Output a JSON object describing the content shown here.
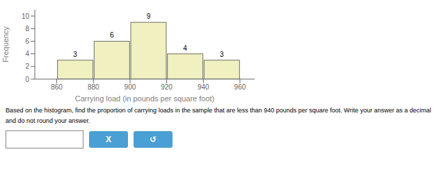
{
  "chart_data": {
    "type": "histogram",
    "bins": [
      860,
      880,
      900,
      920,
      940,
      960
    ],
    "values": [
      3,
      6,
      9,
      4,
      3
    ],
    "color": "#f0f0c0",
    "data_labels": true,
    "xlabel": "Carrying load (in pounds per square foot)",
    "ylabel": "Frequency",
    "xlim": [
      848,
      968
    ],
    "ylim": [
      0,
      11
    ],
    "xticks": [
      860,
      880,
      900,
      920,
      940,
      960
    ],
    "yticks": [
      0,
      2,
      4,
      6,
      8,
      10
    ],
    "annotations": [
      "Based on the histogram, find the proportion of carrying loads in the sample that are less than 940 pounds per square foot. Write your answer as a decimal",
      "and do not round your answer.",
      "X",
      "↺"
    ]
  }
}
